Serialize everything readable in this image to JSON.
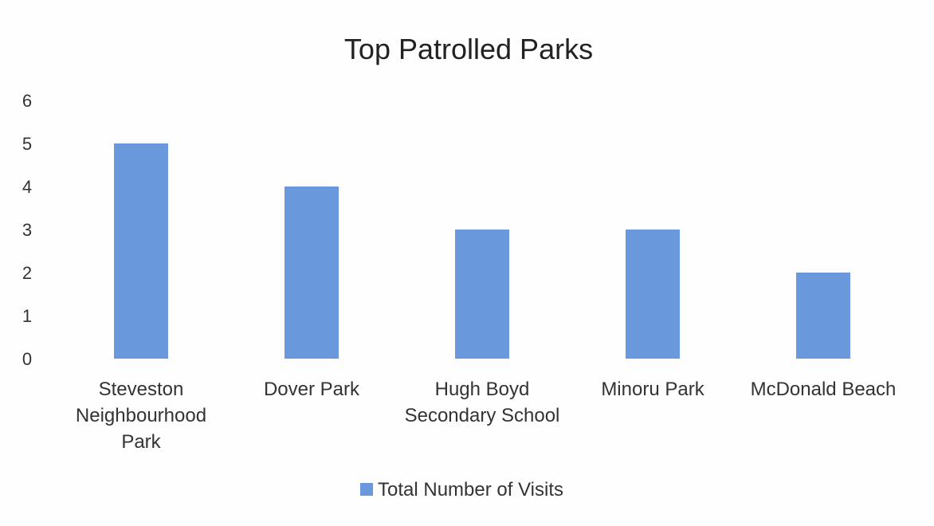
{
  "chart_data": {
    "type": "bar",
    "title": "Top Patrolled Parks",
    "xlabel": "",
    "ylabel": "",
    "categories": [
      "Steveston Neighbourhood Park",
      "Dover Park",
      "Hugh Boyd Secondary School",
      "Minoru Park",
      "McDonald Beach"
    ],
    "category_label_lines": [
      [
        "Steveston",
        "Neighbourhood",
        "Park"
      ],
      [
        "Dover Park"
      ],
      [
        "Hugh Boyd",
        "Secondary School"
      ],
      [
        "Minoru Park"
      ],
      [
        "McDonald Beach"
      ]
    ],
    "series": [
      {
        "name": "Total Number of Visits",
        "values": [
          5,
          4,
          3,
          3,
          2
        ],
        "color": "#6a98dc"
      }
    ],
    "ylim": [
      0,
      6
    ],
    "yticks": [
      0,
      1,
      2,
      3,
      4,
      5,
      6
    ],
    "grid": false,
    "legend_position": "bottom"
  }
}
